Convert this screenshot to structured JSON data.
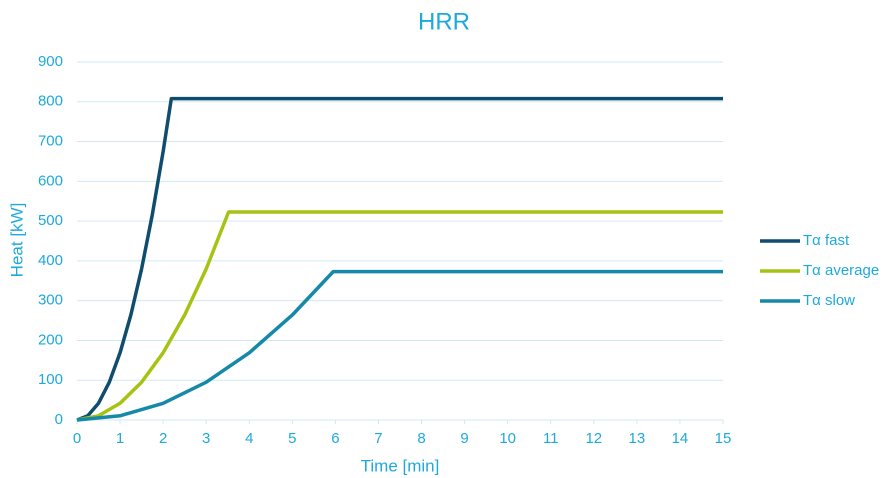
{
  "chart_data": {
    "type": "line",
    "title": "HRR",
    "xlabel": "Time [min]",
    "ylabel": "Heat [kW]",
    "xlim": [
      0,
      15
    ],
    "xticks": [
      0,
      1,
      2,
      3,
      4,
      5,
      6,
      7,
      8,
      9,
      10,
      11,
      12,
      13,
      14,
      15
    ],
    "ylim": [
      0,
      900
    ],
    "yticks": [
      0,
      100,
      200,
      300,
      400,
      500,
      600,
      700,
      800,
      900
    ],
    "grid": true,
    "legend": "right",
    "series": [
      {
        "name": "Tα fast",
        "color": "#0f4c6e",
        "x": [
          0,
          0.25,
          0.5,
          0.75,
          1,
          1.25,
          1.5,
          1.75,
          2,
          2.19,
          15
        ],
        "values": [
          0,
          10.6,
          42.2,
          95,
          169,
          264,
          380,
          517,
          675,
          808,
          808
        ]
      },
      {
        "name": "Tα average",
        "color": "#a6c313",
        "x": [
          0,
          0.5,
          1,
          1.5,
          2,
          2.5,
          3,
          3.52,
          15
        ],
        "values": [
          0,
          10.6,
          42,
          95,
          169,
          264,
          380,
          523,
          523
        ]
      },
      {
        "name": "Tα slow",
        "color": "#1688a8",
        "x": [
          0,
          1,
          2,
          3,
          4,
          5,
          5.95,
          15
        ],
        "values": [
          0,
          10.6,
          42,
          95,
          169,
          264,
          373,
          373
        ]
      }
    ]
  }
}
